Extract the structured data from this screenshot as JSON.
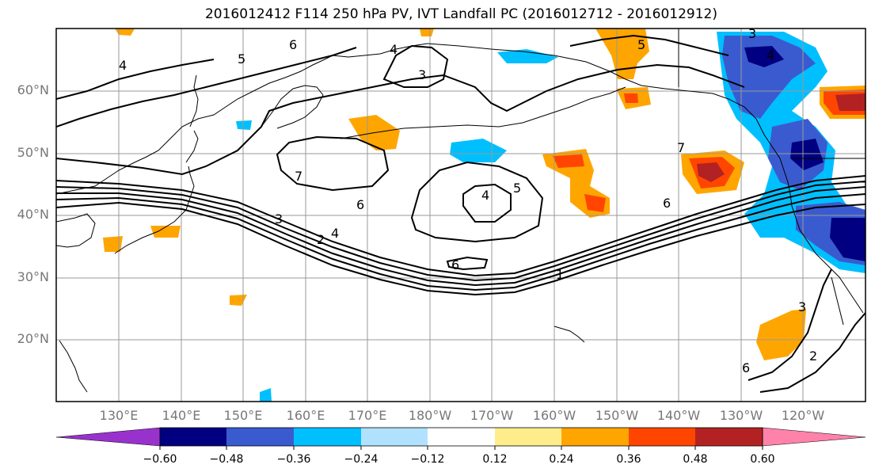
{
  "title": "2016012412 F114 250 hPa PV, IVT Landfall PC (2016012712 - 2016012912)",
  "lat_labels": [
    "60°N",
    "50°N",
    "40°N",
    "30°N",
    "20°N"
  ],
  "lon_labels": [
    "130°E",
    "140°E",
    "150°E",
    "160°E",
    "170°E",
    "180°W",
    "170°W",
    "160°W",
    "150°W",
    "140°W",
    "130°W",
    "120°W"
  ],
  "colorbar": {
    "colors": [
      "#9932cc",
      "#000080",
      "#3a5bd0",
      "#00bfff",
      "#b0e2ff",
      "#ffffff",
      "#ffec8b",
      "#ffa500",
      "#ff4500",
      "#b22222",
      "#ff82ab"
    ],
    "ticks": [
      "−0.60",
      "−0.48",
      "−0.36",
      "−0.24",
      "−0.12",
      "0.12",
      "0.24",
      "0.36",
      "0.48",
      "0.60"
    ]
  },
  "contour_labels": [
    "4",
    "5",
    "6",
    "4",
    "3",
    "5",
    "3",
    "4",
    "7",
    "6",
    "4",
    "5",
    "6",
    "3",
    "2",
    "4",
    "6",
    "1",
    "6",
    "7",
    "3",
    "2"
  ]
}
